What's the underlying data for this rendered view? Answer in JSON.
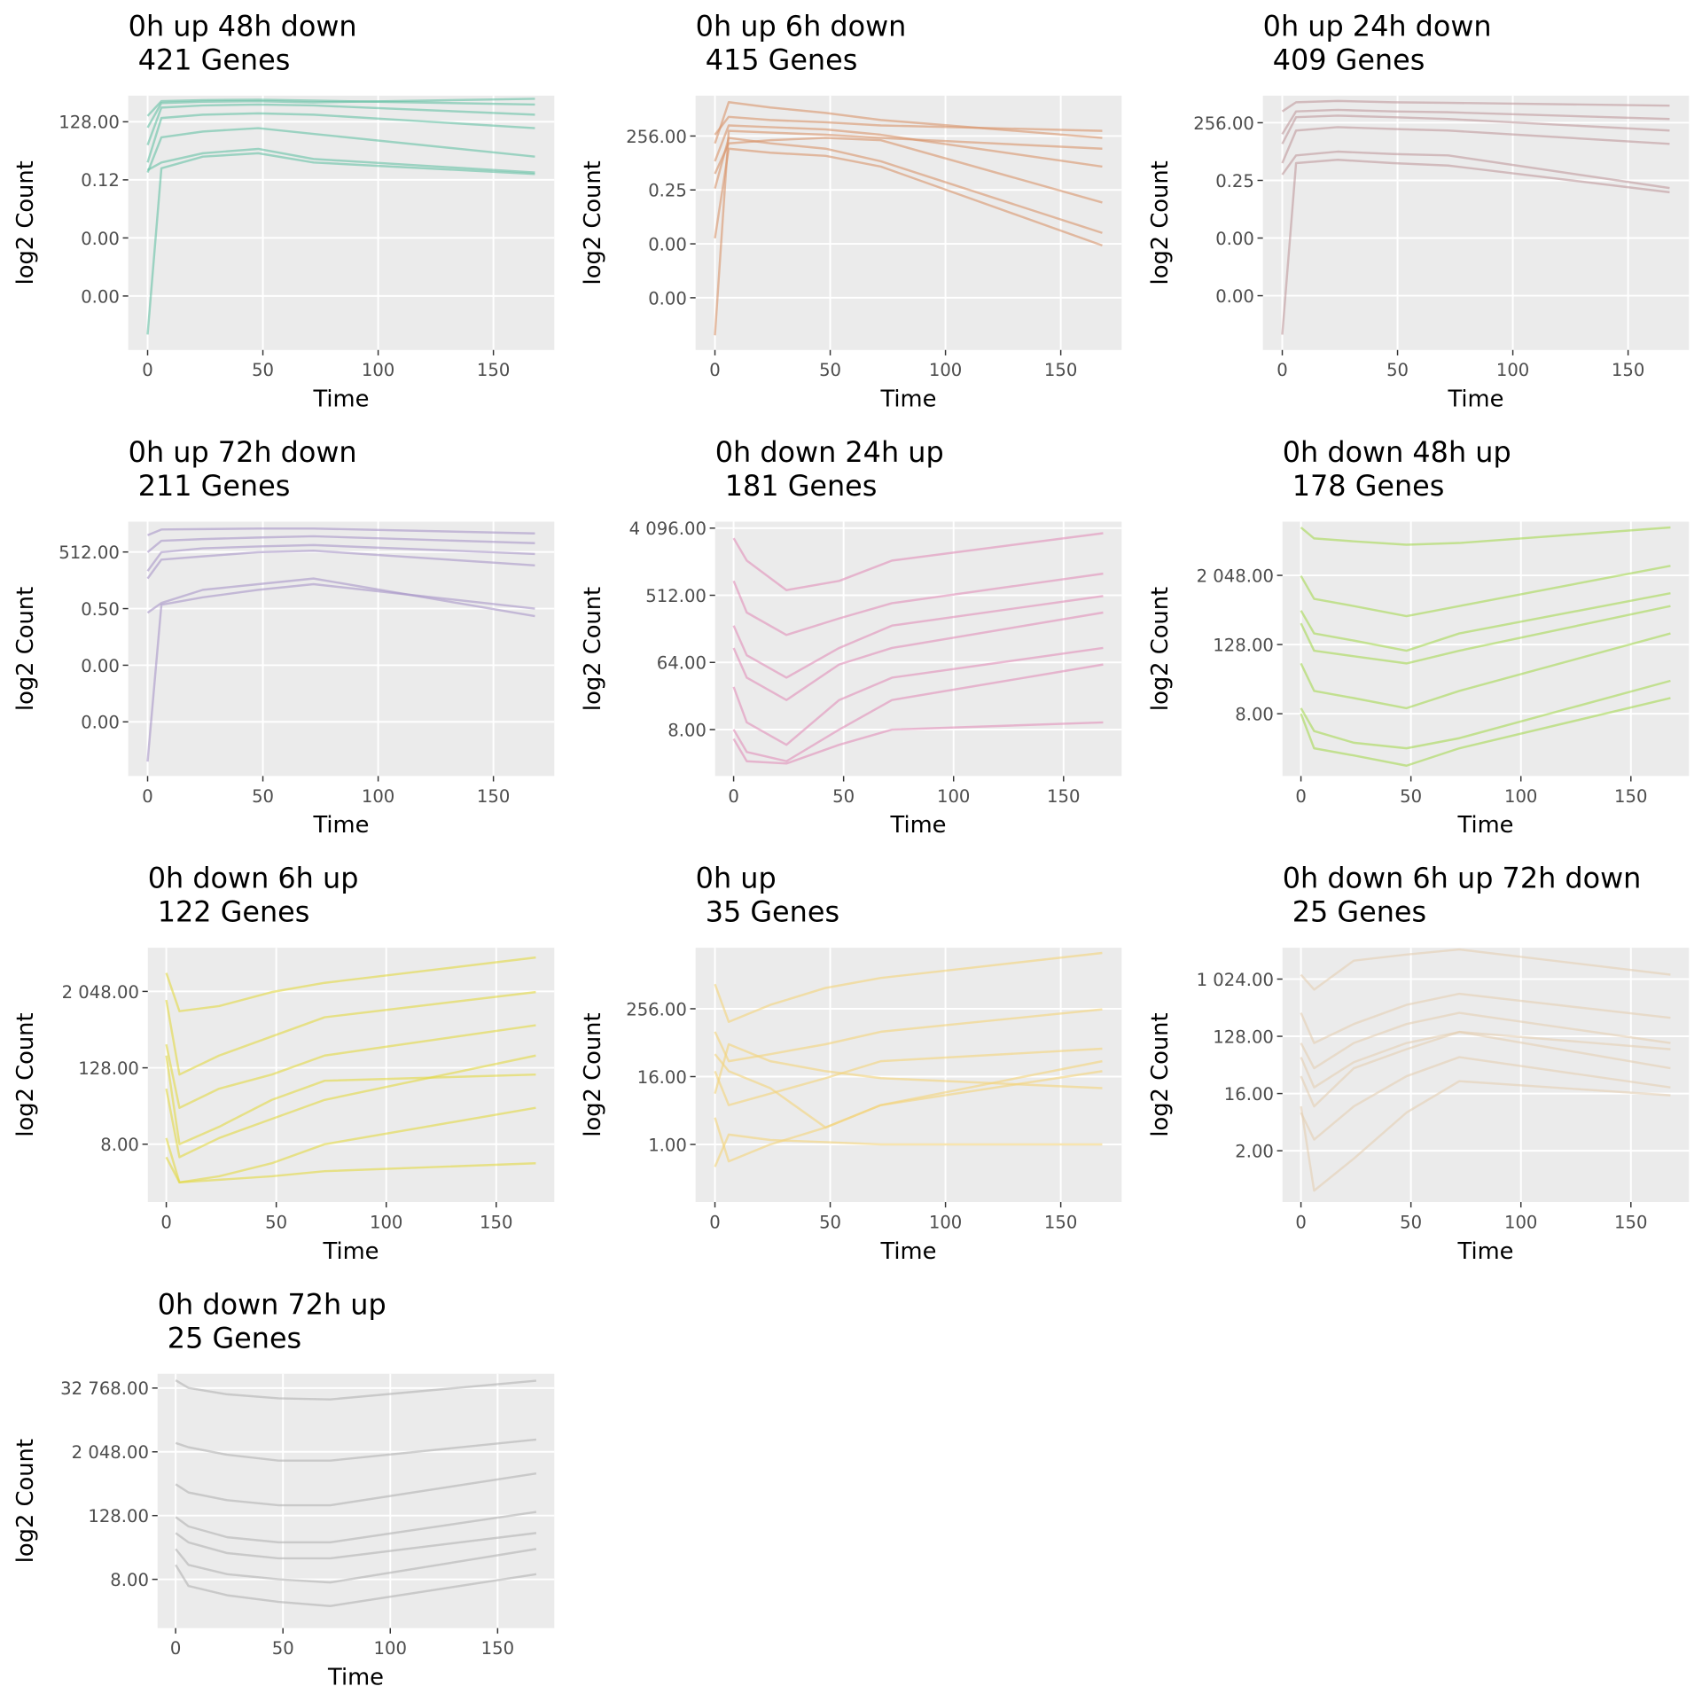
{
  "chart_data": [
    {
      "type": "line",
      "title": "0h up 48h down",
      "subtitle": "421 Genes",
      "xlabel": "Time",
      "ylabel": "log2 Count",
      "log_y": true,
      "grid": true,
      "color": "#66c2a5",
      "x": [
        0,
        6,
        24,
        48,
        72,
        168
      ],
      "xlim": [
        -8.4,
        176.4
      ],
      "xticks": [
        0,
        50,
        100,
        150
      ],
      "ylim": [
        1.9e-10,
        2900
      ],
      "yticks": [
        {
          "value": 128,
          "label": "128.00"
        },
        {
          "value": 0.125,
          "label": "0.12"
        },
        {
          "value": 0.0001220703125,
          "label": "0.00"
        },
        {
          "value": 1.1920928955078125e-07,
          "label": "0.00"
        }
      ],
      "series": [
        {
          "values": [
            256,
            1500,
            1700,
            1800,
            1600,
            1000
          ]
        },
        {
          "values": [
            8,
            700,
            900,
            1000,
            900,
            300
          ]
        },
        {
          "values": [
            1,
            200,
            300,
            350,
            300,
            60
          ]
        },
        {
          "values": [
            0.3,
            20,
            40,
            60,
            30,
            2
          ]
        },
        {
          "values": [
            0.4,
            1,
            3,
            5,
            1.5,
            0.3
          ]
        },
        {
          "values": [
            1.2e-09,
            0.5,
            2,
            3,
            1,
            0.25
          ]
        },
        {
          "values": [
            64,
            1200,
            1400,
            1500,
            1300,
            2000
          ]
        }
      ]
    },
    {
      "type": "line",
      "title": "0h up 6h down",
      "subtitle": "415 Genes",
      "xlabel": "Time",
      "ylabel": "log2 Count",
      "log_y": true,
      "grid": true,
      "color": "#d9956b",
      "x": [
        0,
        6,
        24,
        48,
        72,
        168
      ],
      "xlim": [
        -8.4,
        176.4
      ],
      "xticks": [
        0,
        50,
        100,
        150
      ],
      "ylim": [
        2.9e-10,
        46000
      ],
      "yticks": [
        {
          "value": 256,
          "label": "256.00"
        },
        {
          "value": 0.25,
          "label": "0.25"
        },
        {
          "value": 0.000244140625,
          "label": "0.00"
        },
        {
          "value": 2.384185791015625e-07,
          "label": "0.00"
        }
      ],
      "series": [
        {
          "values": [
            100,
            20000,
            10000,
            5000,
            2000,
            200
          ]
        },
        {
          "values": [
            300,
            3000,
            2000,
            1500,
            1000,
            500
          ]
        },
        {
          "values": [
            10,
            1000,
            800,
            600,
            300,
            5
          ]
        },
        {
          "values": [
            0.3,
            200,
            100,
            50,
            10,
            0.001
          ]
        },
        {
          "values": [
            0.0005,
            50,
            30,
            20,
            5,
            0.0002
          ]
        },
        {
          "values": [
            1.9e-09,
            500,
            400,
            300,
            200,
            50
          ]
        },
        {
          "values": [
            2,
            100,
            150,
            200,
            150,
            0.05
          ]
        }
      ]
    },
    {
      "type": "line",
      "title": "0h up 24h down",
      "subtitle": "409 Genes",
      "xlabel": "Time",
      "ylabel": "log2 Count",
      "log_y": true,
      "grid": true,
      "color": "#c0999c",
      "x": [
        0,
        6,
        24,
        48,
        72,
        168
      ],
      "xlim": [
        -8.4,
        176.4
      ],
      "xticks": [
        0,
        50,
        100,
        150
      ],
      "ylim": [
        3.5e-10,
        6650
      ],
      "yticks": [
        {
          "value": 256,
          "label": "256.00"
        },
        {
          "value": 0.25,
          "label": "0.25"
        },
        {
          "value": 0.000244140625,
          "label": "0.00"
        },
        {
          "value": 2.384185791015625e-07,
          "label": "0.00"
        }
      ],
      "series": [
        {
          "values": [
            1000,
            3000,
            3500,
            3000,
            2800,
            2000
          ]
        },
        {
          "values": [
            64,
            1000,
            1200,
            1000,
            900,
            400
          ]
        },
        {
          "values": [
            2,
            100,
            150,
            120,
            100,
            20
          ]
        },
        {
          "values": [
            0.5,
            5,
            8,
            6,
            5,
            0.1
          ]
        },
        {
          "values": [
            2.2e-09,
            2,
            3,
            2,
            1.5,
            0.06
          ]
        },
        {
          "values": [
            20,
            500,
            600,
            500,
            400,
            100
          ]
        }
      ]
    },
    {
      "type": "line",
      "title": "0h up 72h down",
      "subtitle": "211 Genes",
      "xlabel": "Time",
      "ylabel": "log2 Count",
      "log_y": true,
      "grid": true,
      "color": "#a996c8",
      "x": [
        0,
        6,
        24,
        48,
        72,
        168
      ],
      "xlim": [
        -8.4,
        176.4
      ],
      "xticks": [
        0,
        50,
        100,
        150
      ],
      "ylim": [
        6.3e-10,
        20900
      ],
      "yticks": [
        {
          "value": 512,
          "label": "512.00"
        },
        {
          "value": 0.5,
          "label": "0.50"
        },
        {
          "value": 0.00048828125,
          "label": "0.00"
        },
        {
          "value": 4.76837158203125e-07,
          "label": "0.00"
        }
      ],
      "series": [
        {
          "values": [
            4000,
            8000,
            8500,
            9000,
            9000,
            5000
          ]
        },
        {
          "values": [
            500,
            2000,
            2500,
            3000,
            3500,
            1500
          ]
        },
        {
          "values": [
            20,
            200,
            300,
            500,
            600,
            100
          ]
        },
        {
          "values": [
            0.3,
            1,
            5,
            10,
            20,
            0.2
          ]
        },
        {
          "values": [
            3.7e-09,
            0.8,
            2,
            5,
            10,
            0.5
          ]
        },
        {
          "values": [
            50,
            500,
            800,
            1000,
            1200,
            400
          ]
        }
      ]
    },
    {
      "type": "line",
      "title": "0h down 24h up",
      "subtitle": "181 Genes",
      "xlabel": "Time",
      "ylabel": "log2 Count",
      "log_y": true,
      "grid": true,
      "color": "#e190b9",
      "x": [
        0,
        6,
        24,
        48,
        72,
        168
      ],
      "xlim": [
        -8.4,
        176.4
      ],
      "xticks": [
        0,
        50,
        100,
        150
      ],
      "ylim": [
        1.9,
        5000
      ],
      "yticks": [
        {
          "value": 4096,
          "label": "4 096.00"
        },
        {
          "value": 512,
          "label": "512.00"
        },
        {
          "value": 64,
          "label": "64.00"
        },
        {
          "value": 8,
          "label": "8.00"
        }
      ],
      "series": [
        {
          "values": [
            3000,
            1500,
            600,
            800,
            1500,
            3500
          ]
        },
        {
          "values": [
            800,
            300,
            150,
            250,
            400,
            1000
          ]
        },
        {
          "values": [
            100,
            40,
            20,
            60,
            100,
            300
          ]
        },
        {
          "values": [
            30,
            10,
            5,
            20,
            40,
            100
          ]
        },
        {
          "values": [
            8,
            4,
            3,
            8,
            20,
            60
          ]
        },
        {
          "values": [
            6,
            3,
            2.8,
            5,
            8,
            10
          ]
        },
        {
          "values": [
            200,
            80,
            40,
            100,
            200,
            500
          ]
        }
      ]
    },
    {
      "type": "line",
      "title": "0h down 48h up",
      "subtitle": "178 Genes",
      "xlabel": "Time",
      "ylabel": "log2 Count",
      "log_y": true,
      "grid": true,
      "color": "#a6d854",
      "x": [
        0,
        6,
        24,
        48,
        72,
        168
      ],
      "xlim": [
        -8.4,
        176.4
      ],
      "xticks": [
        0,
        50,
        100,
        150
      ],
      "ylim": [
        0.66,
        17600
      ],
      "yticks": [
        {
          "value": 2048,
          "label": "2 048.00"
        },
        {
          "value": 128,
          "label": "128.00"
        },
        {
          "value": 8,
          "label": "8.00"
        }
      ],
      "series": [
        {
          "values": [
            14000,
            9000,
            8000,
            7000,
            7500,
            14000
          ]
        },
        {
          "values": [
            2000,
            800,
            600,
            400,
            600,
            3000
          ]
        },
        {
          "values": [
            300,
            100,
            80,
            60,
            100,
            600
          ]
        },
        {
          "values": [
            60,
            20,
            15,
            10,
            20,
            200
          ]
        },
        {
          "values": [
            10,
            4,
            2.5,
            2,
            3,
            30
          ]
        },
        {
          "values": [
            8,
            2,
            1.5,
            1,
            2,
            15
          ]
        },
        {
          "values": [
            500,
            200,
            150,
            100,
            200,
            1000
          ]
        }
      ]
    },
    {
      "type": "line",
      "title": "0h down 6h up",
      "subtitle": "122 Genes",
      "xlabel": "Time",
      "ylabel": "log2 Count",
      "log_y": true,
      "grid": true,
      "color": "#e2d843",
      "x": [
        0,
        6,
        24,
        48,
        72,
        168
      ],
      "xlim": [
        -8.4,
        176.4
      ],
      "xticks": [
        0,
        50,
        100,
        150
      ],
      "ylim": [
        0.98,
        10000
      ],
      "yticks": [
        {
          "value": 2048,
          "label": "2 048.00"
        },
        {
          "value": 128,
          "label": "128.00"
        },
        {
          "value": 8,
          "label": "8.00"
        }
      ],
      "series": [
        {
          "values": [
            4000,
            1000,
            1200,
            2000,
            2800,
            7000
          ]
        },
        {
          "values": [
            1500,
            100,
            200,
            400,
            800,
            2000
          ]
        },
        {
          "values": [
            300,
            30,
            60,
            100,
            200,
            600
          ]
        },
        {
          "values": [
            60,
            5,
            10,
            20,
            40,
            200
          ]
        },
        {
          "values": [
            10,
            2,
            2.5,
            4,
            8,
            30
          ]
        },
        {
          "values": [
            5,
            2,
            2.2,
            2.5,
            3,
            4
          ]
        },
        {
          "values": [
            200,
            8,
            15,
            40,
            80,
            100
          ]
        }
      ]
    },
    {
      "type": "line",
      "title": "0h up",
      "subtitle": "35 Genes",
      "xlabel": "Time",
      "ylabel": "log2 Count",
      "log_y": true,
      "grid": true,
      "color": "#f4d47a",
      "x": [
        0,
        6,
        24,
        48,
        72,
        168
      ],
      "xlim": [
        -8.4,
        176.4
      ],
      "xticks": [
        0,
        50,
        100,
        150
      ],
      "ylim": [
        0.095,
        3100
      ],
      "yticks": [
        {
          "value": 256,
          "label": "256.00"
        },
        {
          "value": 16,
          "label": "16.00"
        },
        {
          "value": 1,
          "label": "1.00"
        }
      ],
      "series": [
        {
          "values": [
            700,
            150,
            300,
            600,
            900,
            2500
          ]
        },
        {
          "values": [
            100,
            30,
            40,
            60,
            100,
            250
          ]
        },
        {
          "values": [
            20,
            5,
            8,
            15,
            30,
            50
          ]
        },
        {
          "values": [
            3,
            0.5,
            1,
            2,
            5,
            20
          ]
        },
        {
          "values": [
            0.4,
            1.5,
            1.2,
            1.1,
            1.0,
            1.0
          ]
        },
        {
          "values": [
            40,
            20,
            10,
            2,
            5,
            30
          ]
        },
        {
          "values": [
            8,
            60,
            30,
            20,
            15,
            10
          ]
        }
      ]
    },
    {
      "type": "line",
      "title": "0h down 6h up 72h down",
      "subtitle": "25 Genes",
      "xlabel": "Time",
      "ylabel": "log2 Count",
      "log_y": true,
      "grid": true,
      "color": "#e5cfb3",
      "x": [
        0,
        6,
        24,
        48,
        72,
        168
      ],
      "xlim": [
        -8.4,
        176.4
      ],
      "xticks": [
        0,
        50,
        100,
        150
      ],
      "ylim": [
        0.31,
        3200
      ],
      "yticks": [
        {
          "value": 1024,
          "label": "1 024.00"
        },
        {
          "value": 128,
          "label": "128.00"
        },
        {
          "value": 16,
          "label": "16.00"
        },
        {
          "value": 2,
          "label": "2.00"
        }
      ],
      "series": [
        {
          "values": [
            1200,
            700,
            2000,
            2500,
            3000,
            1200
          ]
        },
        {
          "values": [
            300,
            100,
            200,
            400,
            600,
            250
          ]
        },
        {
          "values": [
            100,
            40,
            100,
            200,
            300,
            100
          ]
        },
        {
          "values": [
            30,
            10,
            40,
            80,
            150,
            40
          ]
        },
        {
          "values": [
            8,
            3,
            10,
            30,
            60,
            20
          ]
        },
        {
          "values": [
            10,
            0.47,
            1.5,
            8,
            25,
            15
          ]
        },
        {
          "values": [
            60,
            20,
            50,
            100,
            150,
            80
          ]
        }
      ]
    },
    {
      "type": "line",
      "title": "0h down 72h up",
      "subtitle": "25 Genes",
      "xlabel": "Time",
      "ylabel": "log2 Count",
      "log_y": true,
      "grid": true,
      "color": "#b3b3b3",
      "x": [
        0,
        6,
        24,
        48,
        72,
        168
      ],
      "xlim": [
        -8.4,
        176.4
      ],
      "xticks": [
        0,
        50,
        100,
        150
      ],
      "ylim": [
        0.96,
        61000
      ],
      "yticks": [
        {
          "value": 32768,
          "label": "32 768.00"
        },
        {
          "value": 2048,
          "label": "2 048.00"
        },
        {
          "value": 128,
          "label": "128.00"
        },
        {
          "value": 8,
          "label": "8.00"
        }
      ],
      "series": [
        {
          "values": [
            46000,
            33000,
            25000,
            21000,
            20000,
            45000
          ]
        },
        {
          "values": [
            3000,
            2500,
            1800,
            1400,
            1400,
            3500
          ]
        },
        {
          "values": [
            500,
            350,
            250,
            200,
            200,
            800
          ]
        },
        {
          "values": [
            120,
            80,
            50,
            40,
            40,
            150
          ]
        },
        {
          "values": [
            30,
            15,
            10,
            8,
            7,
            30
          ]
        },
        {
          "values": [
            15,
            6,
            4,
            3,
            2.5,
            10
          ]
        },
        {
          "values": [
            60,
            40,
            25,
            20,
            20,
            60
          ]
        }
      ]
    }
  ]
}
